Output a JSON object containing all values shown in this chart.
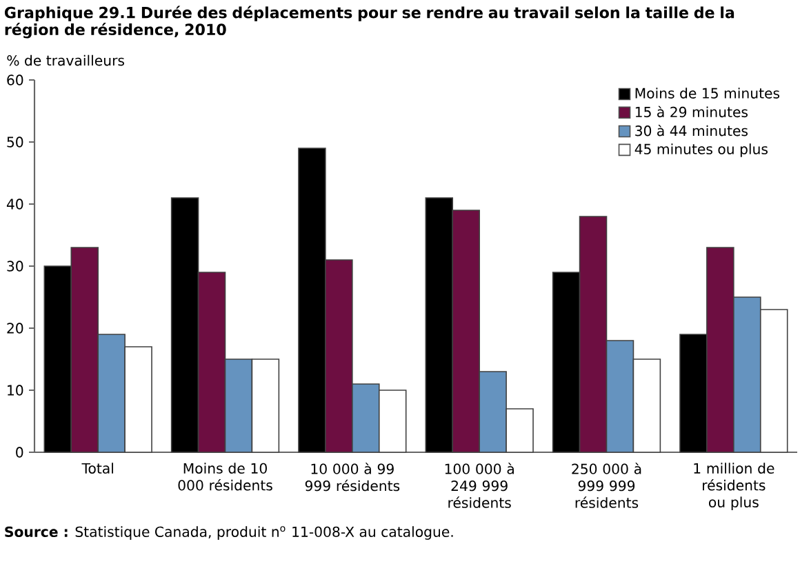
{
  "chart_data": {
    "type": "bar",
    "title": "Graphique 29.1  Durée des déplacements pour se rendre au travail selon la taille de la région de résidence, 2010",
    "ylabel": "% de travailleurs",
    "categories": [
      "Total",
      "Moins de 10 000 résidents",
      "10 000 à 99 999 résidents",
      "100 000 à 249 999 résidents",
      "250 000 à 999 999 résidents",
      "1 million de résidents ou plus"
    ],
    "series": [
      {
        "name": "Moins de 15 minutes",
        "color": "#000000",
        "values": [
          30,
          41,
          49,
          41,
          29,
          19
        ]
      },
      {
        "name": "15 à 29 minutes",
        "color": "#6d0e41",
        "values": [
          33,
          29,
          31,
          39,
          38,
          33
        ]
      },
      {
        "name": "30 à 44 minutes",
        "color": "#6593bf",
        "values": [
          19,
          15,
          11,
          13,
          18,
          25
        ]
      },
      {
        "name": "45 minutes ou plus",
        "color": "#ffffff",
        "values": [
          17,
          15,
          10,
          7,
          15,
          23
        ]
      }
    ],
    "ylim": [
      0,
      60
    ],
    "yticks": [
      0,
      10,
      20,
      30,
      40,
      50,
      60
    ],
    "grid": false,
    "legend": "top right",
    "annotations": [
      "**Source :** Statistique Canada, produit n$^{o}$ 11-008-X au catalogue."
    ]
  }
}
